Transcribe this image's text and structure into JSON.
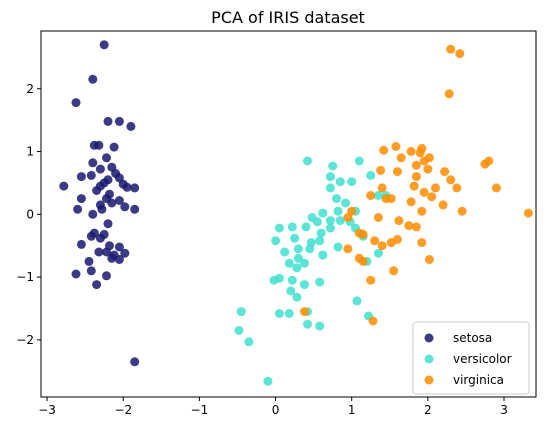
{
  "chart_data": {
    "type": "scatter",
    "title": "PCA of IRIS dataset",
    "xlabel": "",
    "ylabel": "",
    "xlim": [
      -3.08,
      3.42
    ],
    "ylim": [
      -2.91,
      2.92
    ],
    "xticks": [
      -3,
      -2,
      -1,
      0,
      1,
      2,
      3
    ],
    "yticks": [
      -2,
      -1,
      0,
      1,
      2
    ],
    "legend": {
      "placement": "bottom-right"
    },
    "grid": false,
    "series": [
      {
        "name": "setosa",
        "color": "#191970",
        "points": [
          [
            -2.25,
            2.7
          ],
          [
            -2.4,
            2.15
          ],
          [
            -2.62,
            1.78
          ],
          [
            -2.2,
            1.48
          ],
          [
            -2.05,
            1.48
          ],
          [
            -1.9,
            1.4
          ],
          [
            -2.38,
            1.1
          ],
          [
            -2.32,
            1.1
          ],
          [
            -2.12,
            1.07
          ],
          [
            -2.22,
            0.9
          ],
          [
            -2.4,
            0.82
          ],
          [
            -2.15,
            0.75
          ],
          [
            -2.3,
            0.72
          ],
          [
            -2.1,
            0.65
          ],
          [
            -2.42,
            0.62
          ],
          [
            -2.55,
            0.6
          ],
          [
            -2.05,
            0.58
          ],
          [
            -2.2,
            0.55
          ],
          [
            -2.25,
            0.5
          ],
          [
            -2.3,
            0.45
          ],
          [
            -2.0,
            0.48
          ],
          [
            -1.95,
            0.43
          ],
          [
            -1.85,
            0.42
          ],
          [
            -2.35,
            0.38
          ],
          [
            -2.18,
            0.32
          ],
          [
            -2.78,
            0.45
          ],
          [
            -2.55,
            0.25
          ],
          [
            -2.22,
            0.25
          ],
          [
            -2.05,
            0.22
          ],
          [
            -2.3,
            0.15
          ],
          [
            -2.15,
            0.18
          ],
          [
            -1.98,
            0.12
          ],
          [
            -2.6,
            0.08
          ],
          [
            -2.28,
            0.08
          ],
          [
            -2.4,
            0.0
          ],
          [
            -1.85,
            0.08
          ],
          [
            -2.2,
            -0.15
          ],
          [
            -2.38,
            -0.3
          ],
          [
            -2.25,
            -0.32
          ],
          [
            -2.42,
            -0.35
          ],
          [
            -2.3,
            -0.38
          ],
          [
            -2.55,
            -0.48
          ],
          [
            -2.18,
            -0.5
          ],
          [
            -2.05,
            -0.52
          ],
          [
            -2.12,
            -0.65
          ],
          [
            -2.22,
            -0.6
          ],
          [
            -1.98,
            -0.62
          ],
          [
            -2.32,
            -0.6
          ],
          [
            -2.45,
            -0.75
          ],
          [
            -2.05,
            -0.72
          ],
          [
            -2.15,
            -0.7
          ],
          [
            -2.62,
            -0.95
          ],
          [
            -2.42,
            -0.9
          ],
          [
            -2.22,
            -0.98
          ],
          [
            -2.35,
            -1.12
          ],
          [
            -1.85,
            -2.35
          ]
        ]
      },
      {
        "name": "versicolor",
        "color": "#40E0D0",
        "points": [
          [
            0.42,
            0.85
          ],
          [
            1.1,
            0.85
          ],
          [
            0.75,
            0.77
          ],
          [
            1.25,
            0.62
          ],
          [
            0.72,
            0.6
          ],
          [
            0.85,
            0.52
          ],
          [
            1.0,
            0.52
          ],
          [
            0.72,
            0.42
          ],
          [
            1.35,
            0.3
          ],
          [
            0.8,
            0.25
          ],
          [
            1.45,
            0.3
          ],
          [
            0.92,
            0.18
          ],
          [
            0.82,
            0.05
          ],
          [
            1.05,
            0.05
          ],
          [
            0.62,
            0.02
          ],
          [
            0.48,
            -0.05
          ],
          [
            0.72,
            -0.1
          ],
          [
            0.55,
            -0.12
          ],
          [
            0.85,
            -0.1
          ],
          [
            0.98,
            -0.12
          ],
          [
            0.05,
            -0.22
          ],
          [
            0.22,
            -0.2
          ],
          [
            0.4,
            -0.2
          ],
          [
            0.72,
            -0.22
          ],
          [
            1.05,
            -0.22
          ],
          [
            0.6,
            -0.3
          ],
          [
            1.15,
            -0.35
          ],
          [
            0.0,
            -0.42
          ],
          [
            0.25,
            -0.38
          ],
          [
            0.47,
            -0.45
          ],
          [
            0.58,
            -0.42
          ],
          [
            0.3,
            -0.55
          ],
          [
            0.45,
            -0.55
          ],
          [
            0.82,
            -0.52
          ],
          [
            0.12,
            -0.6
          ],
          [
            0.3,
            -0.7
          ],
          [
            1.35,
            -0.62
          ],
          [
            0.18,
            -0.78
          ],
          [
            0.38,
            -0.78
          ],
          [
            0.62,
            -0.65
          ],
          [
            0.28,
            -0.85
          ],
          [
            1.2,
            -0.75
          ],
          [
            -0.02,
            -1.05
          ],
          [
            0.05,
            -1.02
          ],
          [
            0.22,
            -1.05
          ],
          [
            0.38,
            -1.12
          ],
          [
            0.58,
            -1.08
          ],
          [
            0.2,
            -1.22
          ],
          [
            0.28,
            -1.32
          ],
          [
            1.07,
            -1.38
          ],
          [
            0.05,
            -1.58
          ],
          [
            0.18,
            -1.58
          ],
          [
            0.42,
            -1.55
          ],
          [
            1.22,
            -1.62
          ],
          [
            -0.45,
            -1.55
          ],
          [
            0.42,
            -1.75
          ],
          [
            0.58,
            -1.78
          ],
          [
            -0.48,
            -1.85
          ],
          [
            -0.35,
            -2.03
          ],
          [
            -0.1,
            -2.66
          ]
        ]
      },
      {
        "name": "virginica",
        "color": "#FF8C00",
        "points": [
          [
            2.3,
            2.63
          ],
          [
            2.42,
            2.56
          ],
          [
            2.28,
            1.92
          ],
          [
            1.58,
            1.08
          ],
          [
            1.78,
            1.0
          ],
          [
            1.92,
            1.05
          ],
          [
            1.42,
            1.02
          ],
          [
            1.9,
            0.98
          ],
          [
            2.02,
            0.9
          ],
          [
            1.95,
            0.85
          ],
          [
            1.65,
            0.9
          ],
          [
            1.85,
            0.78
          ],
          [
            2.8,
            0.85
          ],
          [
            2.75,
            0.8
          ],
          [
            1.38,
            0.7
          ],
          [
            1.6,
            0.68
          ],
          [
            2.0,
            0.72
          ],
          [
            2.22,
            0.68
          ],
          [
            1.85,
            0.6
          ],
          [
            2.3,
            0.55
          ],
          [
            1.82,
            0.45
          ],
          [
            1.4,
            0.42
          ],
          [
            2.1,
            0.42
          ],
          [
            2.38,
            0.42
          ],
          [
            2.9,
            0.42
          ],
          [
            1.95,
            0.35
          ],
          [
            1.25,
            0.3
          ],
          [
            1.45,
            0.25
          ],
          [
            1.52,
            0.25
          ],
          [
            2.05,
            0.28
          ],
          [
            1.78,
            0.2
          ],
          [
            2.2,
            0.15
          ],
          [
            2.45,
            0.05
          ],
          [
            1.0,
            0.05
          ],
          [
            0.95,
            -0.05
          ],
          [
            3.32,
            0.02
          ],
          [
            1.92,
            0.05
          ],
          [
            1.35,
            -0.05
          ],
          [
            1.62,
            -0.1
          ],
          [
            1.75,
            -0.18
          ],
          [
            1.85,
            -0.2
          ],
          [
            1.1,
            -0.3
          ],
          [
            1.15,
            -0.32
          ],
          [
            1.6,
            -0.4
          ],
          [
            1.52,
            -0.45
          ],
          [
            1.4,
            -0.5
          ],
          [
            1.3,
            -0.42
          ],
          [
            1.92,
            -0.45
          ],
          [
            0.95,
            -0.55
          ],
          [
            1.1,
            -0.7
          ],
          [
            1.15,
            -0.75
          ],
          [
            2.02,
            -0.72
          ],
          [
            1.55,
            -0.9
          ],
          [
            1.25,
            -1.05
          ],
          [
            0.38,
            -1.55
          ],
          [
            1.28,
            -1.7
          ]
        ]
      }
    ]
  }
}
